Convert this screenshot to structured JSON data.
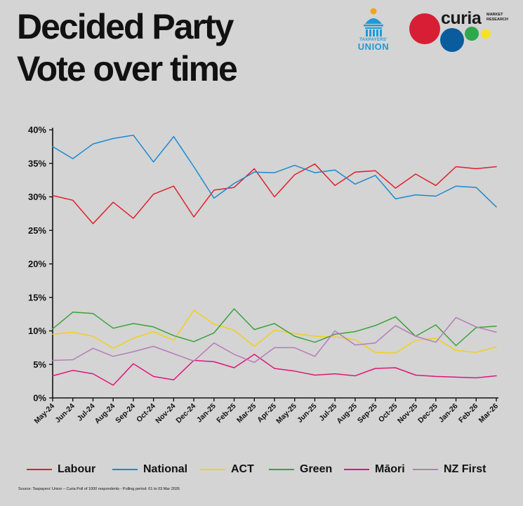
{
  "title": {
    "line1": "Decided Party",
    "line2": "Vote over time"
  },
  "logos": {
    "taxpayers_union": {
      "small": "TAXPAYERS'",
      "big": "UNION",
      "color": "#1f9ad6"
    },
    "curia": {
      "word": "curia",
      "sub1": "MARKET",
      "sub2": "RESEARCH"
    }
  },
  "source": "Source: Taxpayers' Union – Curia Poll of 1000 respondents - Polling period: 01 to 03 Mar 2026",
  "chart_data": {
    "type": "line",
    "title": "Decided Party Vote over time",
    "xlabel": "",
    "ylabel": "",
    "ylim": [
      0,
      40
    ],
    "yticks": [
      "0%",
      "5%",
      "10%",
      "15%",
      "20%",
      "25%",
      "30%",
      "35%",
      "40%"
    ],
    "ytick_values": [
      0,
      5,
      10,
      15,
      20,
      25,
      30,
      35,
      40
    ],
    "grid": false,
    "legend_position": "bottom",
    "categories": [
      "May-24",
      "Jun-24",
      "Jul-24",
      "Aug-24",
      "Sep-24",
      "Oct-24",
      "Nov-24",
      "Dec-24",
      "Jan-25",
      "Feb-25",
      "Mar-25",
      "Apr-25",
      "May-25",
      "Jun-25",
      "Jul-25",
      "Aug-25",
      "Sep-25",
      "Oct-25",
      "Nov-25",
      "Dec-25",
      "Jan-26",
      "Feb-26",
      "Mar-26"
    ],
    "series": [
      {
        "name": "Labour",
        "color": "#e0202a",
        "values": [
          30.2,
          29.5,
          26.0,
          29.2,
          26.8,
          30.4,
          31.6,
          27.0,
          31.0,
          31.4,
          34.2,
          30.0,
          33.3,
          34.9,
          31.7,
          33.7,
          33.9,
          31.3,
          33.4,
          31.7,
          34.5,
          34.2,
          34.5
        ]
      },
      {
        "name": "National",
        "color": "#1b8ad0",
        "values": [
          37.5,
          35.7,
          37.9,
          38.7,
          39.2,
          35.2,
          39.0,
          34.5,
          29.8,
          32.0,
          33.7,
          33.6,
          34.7,
          33.6,
          34.0,
          31.9,
          33.2,
          29.7,
          30.3,
          30.1,
          31.6,
          31.4,
          28.5
        ]
      },
      {
        "name": "ACT",
        "color": "#f2d01a",
        "values": [
          9.5,
          9.8,
          9.2,
          7.4,
          8.9,
          9.9,
          8.6,
          13.1,
          11.0,
          10.1,
          7.7,
          10.1,
          9.6,
          9.2,
          9.1,
          8.7,
          6.8,
          6.7,
          8.6,
          8.9,
          7.1,
          6.8,
          7.6
        ]
      },
      {
        "name": "Green",
        "color": "#3aa23a",
        "values": [
          10.3,
          12.8,
          12.6,
          10.4,
          11.1,
          10.6,
          9.3,
          8.4,
          9.7,
          13.3,
          10.2,
          11.1,
          9.2,
          8.3,
          9.5,
          9.9,
          10.8,
          12.1,
          9.2,
          10.9,
          7.8,
          10.5,
          10.7
        ]
      },
      {
        "name": "Māori",
        "color": "#e0157a",
        "values": [
          3.3,
          4.1,
          3.6,
          1.9,
          5.1,
          3.2,
          2.7,
          5.6,
          5.4,
          4.5,
          6.5,
          4.4,
          4.0,
          3.4,
          3.6,
          3.3,
          4.4,
          4.5,
          3.4,
          3.2,
          3.1,
          3.0,
          3.3
        ]
      },
      {
        "name": "NZ First",
        "color": "#b77bb8",
        "values": [
          5.6,
          5.7,
          7.4,
          6.2,
          6.9,
          7.7,
          6.6,
          5.5,
          8.2,
          6.5,
          5.3,
          7.5,
          7.5,
          6.2,
          10.0,
          7.9,
          8.2,
          10.8,
          9.2,
          8.3,
          12.0,
          10.6,
          9.8
        ]
      }
    ]
  }
}
